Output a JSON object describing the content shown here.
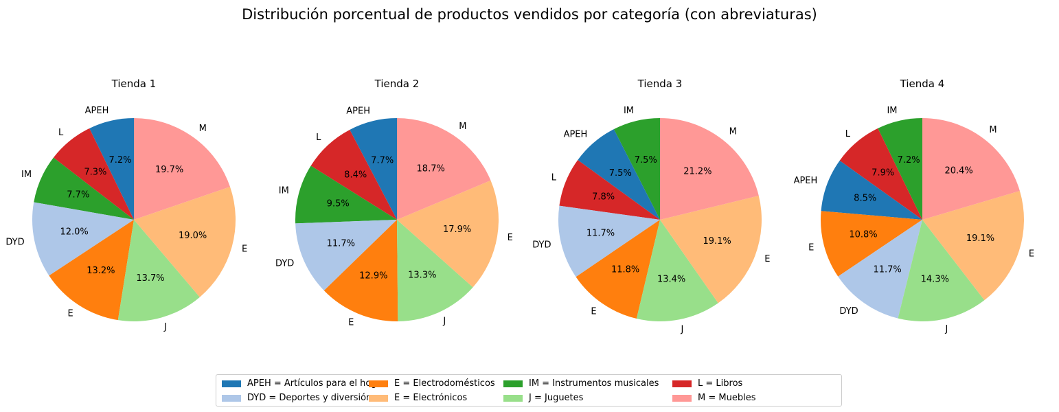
{
  "chart_data": {
    "title": "Distribución porcentual de productos vendidos por categoría (con abreviaturas)",
    "type": "pie",
    "colors": {
      "APEH": "#1f77b4",
      "DYD": "#aec7e8",
      "E_electro": "#ff7f0e",
      "E_electron": "#ffbb78",
      "IM": "#2ca02c",
      "J": "#98df8a",
      "L": "#d62728",
      "M": "#ff9896"
    },
    "legend": [
      {
        "key": "APEH",
        "label": "APEH = Artículos para el hogar"
      },
      {
        "key": "DYD",
        "label": "DYD = Deportes y diversión"
      },
      {
        "key": "E_electro",
        "label": "E = Electrodomésticos"
      },
      {
        "key": "E_electron",
        "label": "E = Electrónicos"
      },
      {
        "key": "IM",
        "label": "IM = Instrumentos musicales"
      },
      {
        "key": "J",
        "label": "J = Juguetes"
      },
      {
        "key": "L",
        "label": "L = Libros"
      },
      {
        "key": "M",
        "label": "M = Muebles"
      }
    ],
    "legend_placement": "bottom-center",
    "pies": [
      {
        "title": "Tienda 1",
        "slices": [
          {
            "key": "APEH",
            "label": "APEH",
            "value": 7.2,
            "display": "7.2%"
          },
          {
            "key": "L",
            "label": "L",
            "value": 7.3,
            "display": "7.3%"
          },
          {
            "key": "IM",
            "label": "IM",
            "value": 7.7,
            "display": "7.7%"
          },
          {
            "key": "DYD",
            "label": "DYD",
            "value": 12.0,
            "display": "12.0%"
          },
          {
            "key": "E_electro",
            "label": "E",
            "value": 13.2,
            "display": "13.2%"
          },
          {
            "key": "J",
            "label": "J",
            "value": 13.7,
            "display": "13.7%"
          },
          {
            "key": "E_electron",
            "label": "E",
            "value": 19.0,
            "display": "19.0%"
          },
          {
            "key": "M",
            "label": "M",
            "value": 19.7,
            "display": "19.7%"
          }
        ]
      },
      {
        "title": "Tienda 2",
        "slices": [
          {
            "key": "APEH",
            "label": "APEH",
            "value": 7.7,
            "display": "7.7%"
          },
          {
            "key": "L",
            "label": "L",
            "value": 8.4,
            "display": "8.4%"
          },
          {
            "key": "IM",
            "label": "IM",
            "value": 9.5,
            "display": "9.5%"
          },
          {
            "key": "DYD",
            "label": "DYD",
            "value": 11.7,
            "display": "11.7%"
          },
          {
            "key": "E_electro",
            "label": "E",
            "value": 12.9,
            "display": "12.9%"
          },
          {
            "key": "J",
            "label": "J",
            "value": 13.3,
            "display": "13.3%"
          },
          {
            "key": "E_electron",
            "label": "E",
            "value": 17.9,
            "display": "17.9%"
          },
          {
            "key": "M",
            "label": "M",
            "value": 18.7,
            "display": "18.7%"
          }
        ]
      },
      {
        "title": "Tienda 3",
        "slices": [
          {
            "key": "IM",
            "label": "IM",
            "value": 7.5,
            "display": "7.5%"
          },
          {
            "key": "APEH",
            "label": "APEH",
            "value": 7.5,
            "display": "7.5%"
          },
          {
            "key": "L",
            "label": "L",
            "value": 7.8,
            "display": "7.8%"
          },
          {
            "key": "DYD",
            "label": "DYD",
            "value": 11.7,
            "display": "11.7%"
          },
          {
            "key": "E_electro",
            "label": "E",
            "value": 11.8,
            "display": "11.8%"
          },
          {
            "key": "J",
            "label": "J",
            "value": 13.4,
            "display": "13.4%"
          },
          {
            "key": "E_electron",
            "label": "E",
            "value": 19.1,
            "display": "19.1%"
          },
          {
            "key": "M",
            "label": "M",
            "value": 21.2,
            "display": "21.2%"
          }
        ]
      },
      {
        "title": "Tienda 4",
        "slices": [
          {
            "key": "IM",
            "label": "IM",
            "value": 7.2,
            "display": "7.2%"
          },
          {
            "key": "L",
            "label": "L",
            "value": 7.9,
            "display": "7.9%"
          },
          {
            "key": "APEH",
            "label": "APEH",
            "value": 8.5,
            "display": "8.5%"
          },
          {
            "key": "E_electro",
            "label": "E",
            "value": 10.8,
            "display": "10.8%"
          },
          {
            "key": "DYD",
            "label": "DYD",
            "value": 11.7,
            "display": "11.7%"
          },
          {
            "key": "J",
            "label": "J",
            "value": 14.3,
            "display": "14.3%"
          },
          {
            "key": "E_electron",
            "label": "E",
            "value": 19.1,
            "display": "19.1%"
          },
          {
            "key": "M",
            "label": "M",
            "value": 20.4,
            "display": "20.4%"
          }
        ]
      }
    ]
  }
}
